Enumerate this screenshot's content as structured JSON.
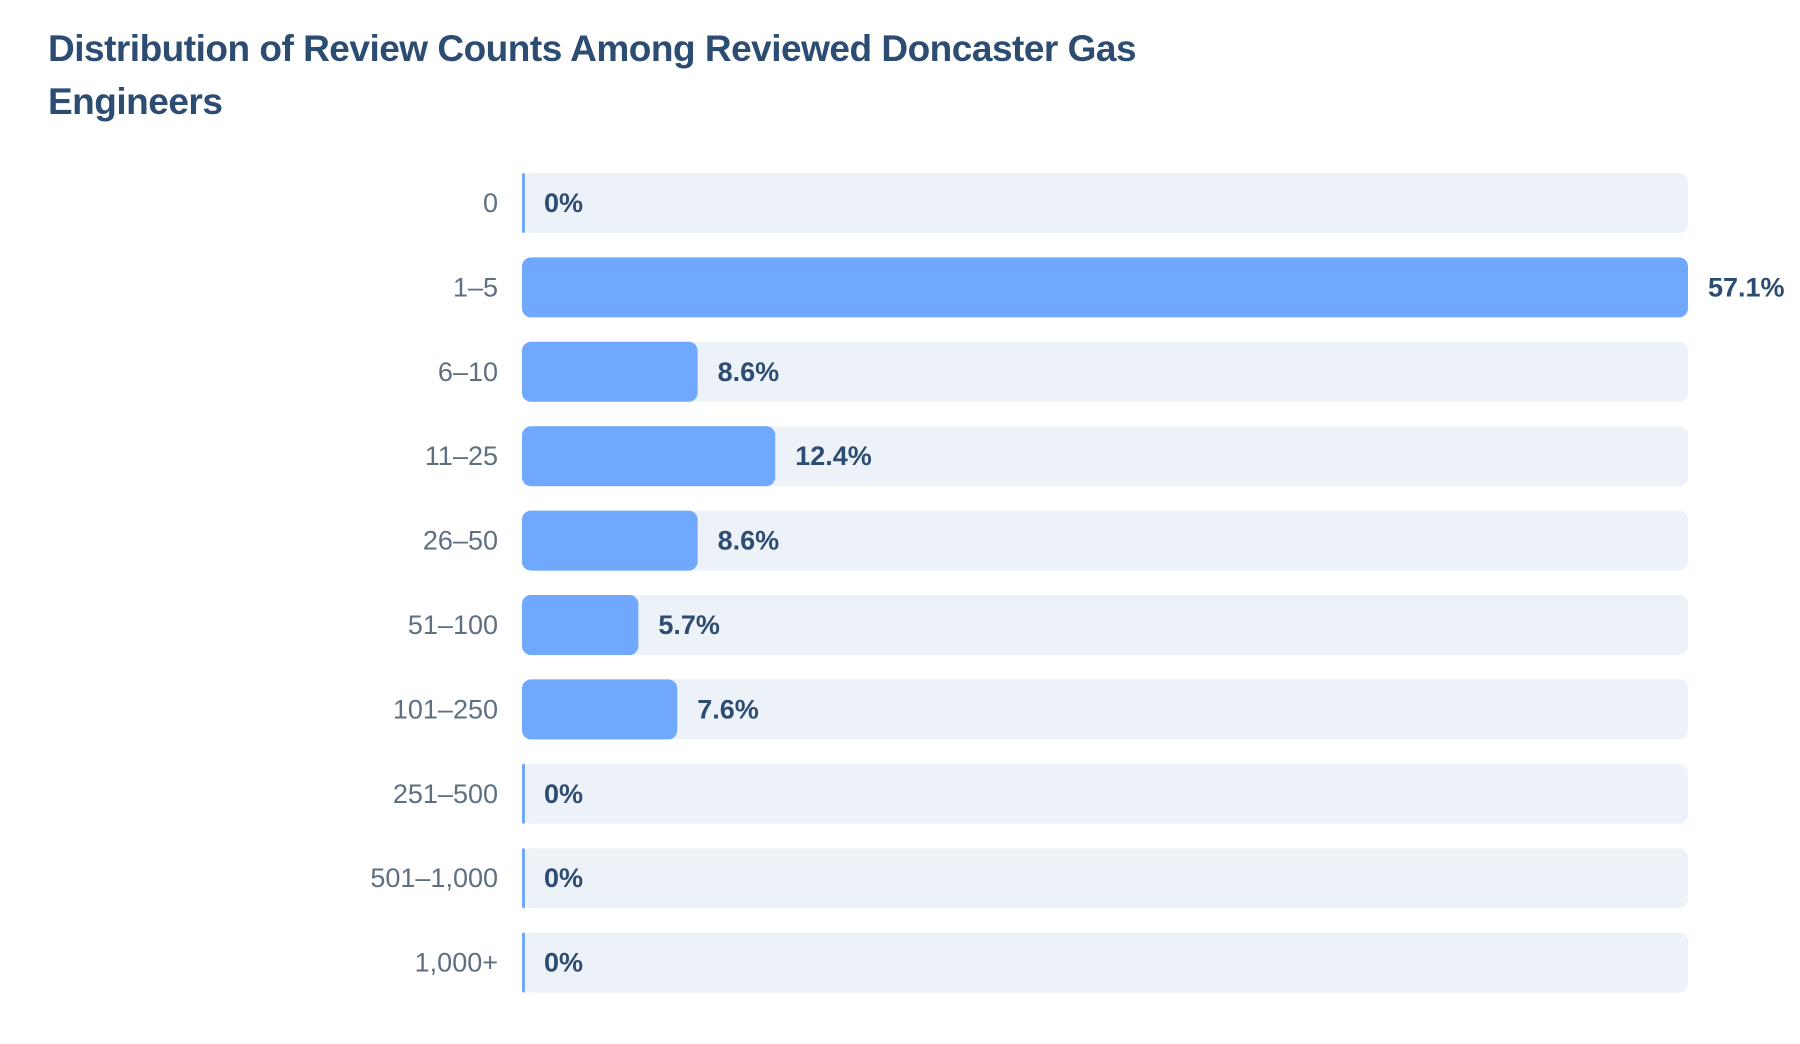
{
  "chart_data": {
    "type": "bar",
    "orientation": "horizontal",
    "title": "Distribution of Review Counts Among Reviewed Doncaster Gas Engineers",
    "categories": [
      "0",
      "1–5",
      "6–10",
      "11–25",
      "26–50",
      "51–100",
      "101–250",
      "251–500",
      "501–1,000",
      "1,000+"
    ],
    "values": [
      0,
      57.1,
      8.6,
      12.4,
      8.6,
      5.7,
      7.6,
      0,
      0,
      0
    ],
    "value_labels": [
      "0%",
      "57.1%",
      "8.6%",
      "12.4%",
      "8.6%",
      "5.7%",
      "7.6%",
      "0%",
      "0%",
      "0%"
    ],
    "xlim": [
      0,
      57.1
    ],
    "grid": false,
    "legend": "none",
    "colors": {
      "bar": "#6fa8fc",
      "track": "#edf2f9",
      "title": "#2c4c72",
      "category_text": "#5f6f82",
      "value_text": "#2c4c72"
    }
  }
}
